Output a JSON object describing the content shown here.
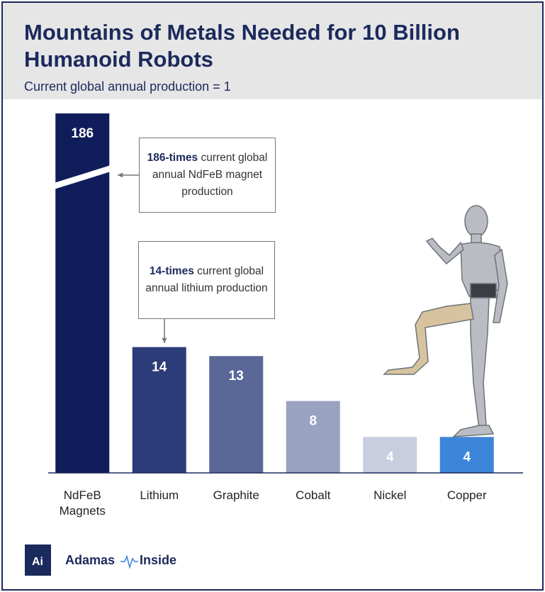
{
  "chart_data": {
    "type": "bar",
    "title": [
      "Mountains of Metals Needed for 10 Billion",
      "Humanoid Robots"
    ],
    "subtitle": "Current global annual production = 1",
    "categories": [
      "NdFeB Magnets",
      "Lithium",
      "Graphite",
      "Cobalt",
      "Nickel",
      "Copper"
    ],
    "values": [
      186,
      14,
      13,
      8,
      4,
      4
    ],
    "colors": [
      "#0f1d5a",
      "#2c3c78",
      "#5a6898",
      "#9aa2c2",
      "#c8cddf",
      "#3d85d8"
    ],
    "ylim": [
      0,
      40
    ],
    "axis_break": true,
    "annotations": [
      {
        "bold": "186-times",
        "text": " current global annual NdFeB magnet production"
      },
      {
        "bold": "14-times",
        "text": " current global annual lithium production"
      }
    ]
  },
  "logo": {
    "mark": "Ai",
    "name_left": "Adamas",
    "name_right": "Inside"
  }
}
